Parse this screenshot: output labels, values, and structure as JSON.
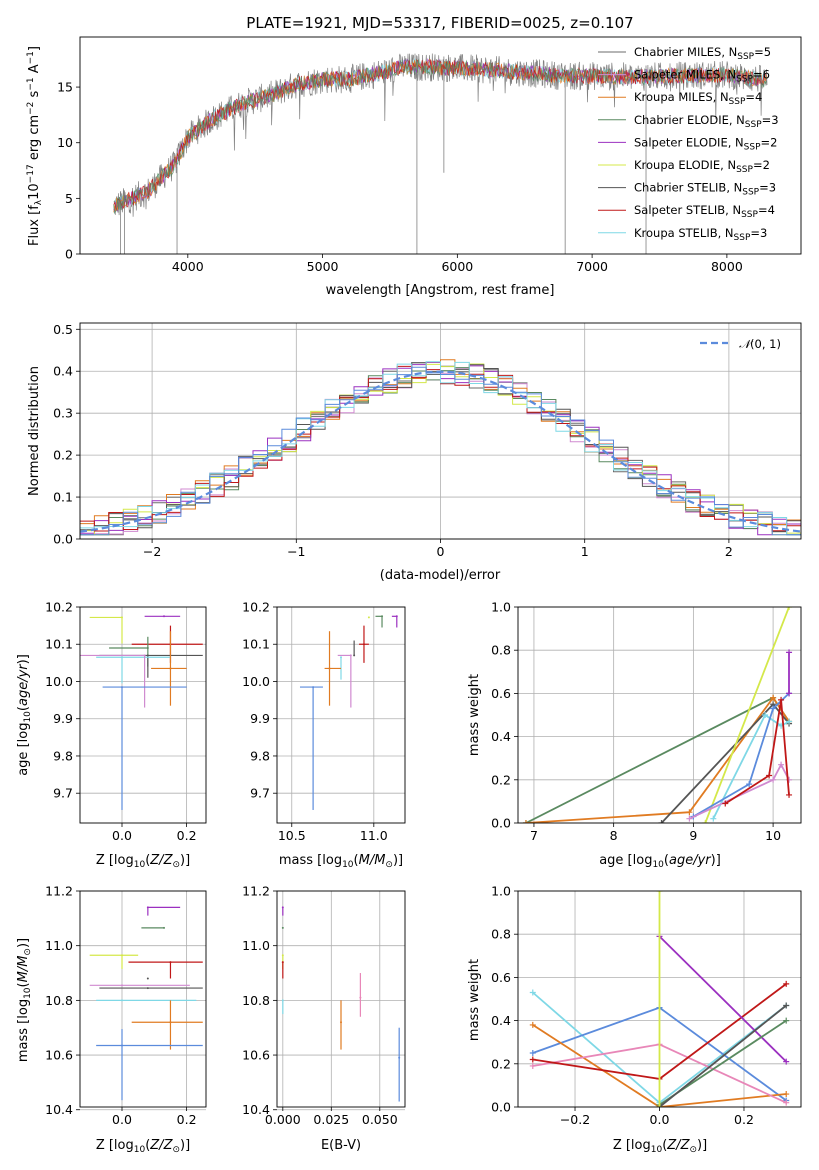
{
  "title": "PLATE=1921, MJD=53317, FIBERID=0025, z=0.107",
  "colors": {
    "Chabrier MILES": "#6b6b6b",
    "Salpeter MILES": "#d08ad0",
    "Kroupa MILES": "#e07b22",
    "Chabrier ELODIE": "#5a8a60",
    "Salpeter ELODIE": "#9b30c0",
    "Kroupa ELODIE": "#d4e84a",
    "Chabrier STELIB": "#555555",
    "Salpeter STELIB": "#c01818",
    "Kroupa STELIB": "#7fd8e6",
    "data": "#808080",
    "normal": "#5b8bdc",
    "mass_points_blue": "#5b8bdc",
    "pink": "#e887b8"
  },
  "chart_data": [
    {
      "id": "spectrum",
      "type": "line",
      "title": "PLATE=1921, MJD=53317, FIBERID=0025, z=0.107",
      "xlabel": "wavelength [Angstrom, rest frame]",
      "ylabel": "Flux [f$_\\lambda$10$^{-17}$ erg cm$^{-2}$ s$^{-1}$ A$^{-1}$]",
      "xlim": [
        3200,
        8550
      ],
      "ylim": [
        0,
        19.5
      ],
      "xticks": [
        4000,
        5000,
        6000,
        7000,
        8000
      ],
      "yticks": [
        0,
        5,
        10,
        15
      ],
      "legend_position": "right",
      "legend": [
        {
          "label": "Chabrier MILES, N",
          "sub": "SSP",
          "suffix": "=5"
        },
        {
          "label": "Salpeter MILES, N",
          "sub": "SSP",
          "suffix": "=6"
        },
        {
          "label": "Kroupa MILES, N",
          "sub": "SSP",
          "suffix": "=4"
        },
        {
          "label": "Chabrier ELODIE, N",
          "sub": "SSP",
          "suffix": "=3"
        },
        {
          "label": "Salpeter ELODIE, N",
          "sub": "SSP",
          "suffix": "=2"
        },
        {
          "label": "Kroupa ELODIE, N",
          "sub": "SSP",
          "suffix": "=2"
        },
        {
          "label": "Chabrier STELIB, N",
          "sub": "SSP",
          "suffix": "=3"
        },
        {
          "label": "Salpeter STELIB, N",
          "sub": "SSP",
          "suffix": "=4"
        },
        {
          "label": "Kroupa STELIB, N",
          "sub": "SSP",
          "suffix": "=3"
        }
      ],
      "continuum": [
        [
          3450,
          4.3
        ],
        [
          3700,
          5.6
        ],
        [
          3900,
          8.0
        ],
        [
          4000,
          10.5
        ],
        [
          4200,
          12.3
        ],
        [
          4400,
          13.5
        ],
        [
          4600,
          14.2
        ],
        [
          4800,
          15.2
        ],
        [
          5000,
          15.7
        ],
        [
          5200,
          15.7
        ],
        [
          5400,
          16.2
        ],
        [
          5600,
          16.8
        ],
        [
          5800,
          16.8
        ],
        [
          6000,
          16.7
        ],
        [
          6200,
          16.6
        ],
        [
          6500,
          16.3
        ],
        [
          6800,
          16.0
        ],
        [
          7000,
          16.0
        ],
        [
          7300,
          15.9
        ],
        [
          7600,
          16.0
        ],
        [
          8000,
          16.1
        ],
        [
          8300,
          15.6
        ]
      ],
      "dips": [
        [
          3500,
          0
        ],
        [
          3530,
          0
        ],
        [
          3920,
          0
        ],
        [
          5700,
          0
        ],
        [
          6800,
          0
        ],
        [
          7400,
          0
        ],
        [
          5900,
          7.3
        ]
      ]
    },
    {
      "id": "residuals",
      "type": "line",
      "xlabel": "(data-model)/error",
      "ylabel": "Normed distribution",
      "xlim": [
        -2.5,
        2.5
      ],
      "ylim": [
        0,
        0.515
      ],
      "xticks": [
        -2,
        -1,
        0,
        1,
        2
      ],
      "yticks": [
        0.0,
        0.1,
        0.2,
        0.3,
        0.4,
        0.5
      ],
      "legend": [
        {
          "label": "𝒩(0, 1)"
        }
      ],
      "legend_position": "top-right"
    },
    {
      "id": "age_vs_Z",
      "type": "scatter",
      "xlabel": "Z [log10(Z/Z⊙)]",
      "ylabel": "age  [log10(age/yr)]",
      "xlim": [
        -0.13,
        0.26
      ],
      "ylim": [
        9.62,
        10.2
      ],
      "xticks": [
        0.0,
        0.2
      ],
      "yticks": [
        9.7,
        9.8,
        9.9,
        10.0,
        10.1,
        10.2
      ],
      "points": [
        {
          "c": "Kroupa ELODIE",
          "x": 0.0,
          "xerr": [
            0.1,
            0.0
          ],
          "y": 10.172,
          "yerr": [
            0.07,
            0.0
          ]
        },
        {
          "c": "Salpeter ELODIE",
          "x": 0.13,
          "xerr": [
            0.06,
            0.05
          ],
          "y": 10.175,
          "yerr": [
            0.0,
            0.0
          ]
        },
        {
          "c": "Salpeter STELIB",
          "x": 0.15,
          "xerr": [
            0.12,
            0.1
          ],
          "y": 10.1,
          "yerr": [
            0.05,
            0.05
          ]
        },
        {
          "c": "Chabrier ELODIE",
          "x": 0.08,
          "xerr": [
            0.12,
            0.0
          ],
          "y": 10.09,
          "yerr": [
            0.05,
            0.03
          ]
        },
        {
          "c": "Chabrier STELIB",
          "x": 0.08,
          "xerr": [
            0.15,
            0.17
          ],
          "y": 10.07,
          "yerr": [
            0.06,
            0.0
          ]
        },
        {
          "c": "Kroupa STELIB",
          "x": 0.0,
          "xerr": [
            0.08,
            0.15
          ],
          "y": 10.065,
          "yerr": [
            0.07,
            0.0
          ]
        },
        {
          "c": "Salpeter MILES",
          "x": 0.07,
          "xerr": [
            0.2,
            0.0
          ],
          "y": 10.07,
          "yerr": [
            0.14,
            0.0
          ]
        },
        {
          "c": "Kroupa MILES",
          "x": 0.15,
          "xerr": [
            0.06,
            0.05
          ],
          "y": 10.035,
          "yerr": [
            0.1,
            0.1
          ]
        },
        {
          "c": "normal",
          "x": 0.0,
          "xerr": [
            0.06,
            0.2
          ],
          "y": 9.985,
          "yerr": [
            0.33,
            0.0
          ]
        }
      ]
    },
    {
      "id": "age_vs_mass",
      "type": "scatter",
      "xlabel": "mass [log10(M/M⊙)]",
      "ylabel": "",
      "xlim": [
        10.41,
        11.19
      ],
      "ylim": [
        9.62,
        10.2
      ],
      "xticks": [
        10.5,
        11.0
      ],
      "yticks": [
        9.7,
        9.8,
        9.9,
        10.0,
        10.1,
        10.2
      ],
      "points": [
        {
          "c": "Kroupa ELODIE",
          "x": 10.97,
          "xerr": [
            0.0,
            0.0
          ],
          "y": 10.172,
          "yerr": [
            0.0,
            0.0
          ]
        },
        {
          "c": "Chabrier ELODIE",
          "x": 11.05,
          "xerr": [
            0.04,
            0.0
          ],
          "y": 10.175,
          "yerr": [
            0.03,
            0.0
          ]
        },
        {
          "c": "Salpeter ELODIE",
          "x": 11.14,
          "xerr": [
            0.03,
            0.0
          ],
          "y": 10.175,
          "yerr": [
            0.03,
            0.0
          ]
        },
        {
          "c": "Salpeter STELIB",
          "x": 10.94,
          "xerr": [
            0.03,
            0.03
          ],
          "y": 10.1,
          "yerr": [
            0.05,
            0.05
          ]
        },
        {
          "c": "Chabrier STELIB",
          "x": 10.88,
          "xerr": [
            0.0,
            0.0
          ],
          "y": 10.07,
          "yerr": [
            0.0,
            0.04
          ]
        },
        {
          "c": "Kroupa STELIB",
          "x": 10.8,
          "xerr": [
            0.0,
            0.0
          ],
          "y": 10.065,
          "yerr": [
            0.06,
            0.0
          ]
        },
        {
          "c": "Salpeter MILES",
          "x": 10.86,
          "xerr": [
            0.08,
            0.0
          ],
          "y": 10.07,
          "yerr": [
            0.14,
            0.0
          ]
        },
        {
          "c": "Kroupa MILES",
          "x": 10.73,
          "xerr": [
            0.03,
            0.07
          ],
          "y": 10.035,
          "yerr": [
            0.1,
            0.1
          ]
        },
        {
          "c": "normal",
          "x": 10.63,
          "xerr": [
            0.08,
            0.06
          ],
          "y": 9.985,
          "yerr": [
            0.33,
            0.0
          ]
        }
      ]
    },
    {
      "id": "weight_vs_age",
      "type": "line",
      "xlabel": "age  [log10(age/yr)]",
      "ylabel": "mass weight",
      "xlim": [
        6.8,
        10.35
      ],
      "ylim": [
        0,
        1.0
      ],
      "xticks": [
        7,
        8,
        9,
        10
      ],
      "yticks": [
        0.0,
        0.2,
        0.4,
        0.6,
        0.8,
        1.0
      ],
      "series": [
        {
          "c": "Chabrier ELODIE",
          "points": [
            [
              6.9,
              0.0
            ],
            [
              10.0,
              0.58
            ],
            [
              10.2,
              0.47
            ]
          ]
        },
        {
          "c": "Kroupa MILES",
          "points": [
            [
              6.9,
              0.0
            ],
            [
              8.95,
              0.05
            ],
            [
              10.0,
              0.58
            ],
            [
              10.2,
              0.47
            ]
          ]
        },
        {
          "c": "Chabrier STELIB",
          "points": [
            [
              8.6,
              0.0
            ],
            [
              10.0,
              0.55
            ],
            [
              10.2,
              0.46
            ]
          ]
        },
        {
          "c": "Kroupa ELODIE",
          "points": [
            [
              9.15,
              0.0
            ],
            [
              10.2,
              1.0
            ]
          ]
        },
        {
          "c": "Kroupa STELIB",
          "points": [
            [
              9.25,
              0.02
            ],
            [
              9.9,
              0.5
            ],
            [
              10.1,
              0.45
            ],
            [
              10.2,
              0.47
            ]
          ]
        },
        {
          "c": "normal",
          "points": [
            [
              9.0,
              0.03
            ],
            [
              9.7,
              0.18
            ],
            [
              10.0,
              0.53
            ],
            [
              10.2,
              0.6
            ]
          ]
        },
        {
          "c": "Salpeter MILES",
          "points": [
            [
              8.95,
              0.02
            ],
            [
              10.0,
              0.2
            ],
            [
              10.1,
              0.27
            ],
            [
              10.2,
              0.2
            ]
          ]
        },
        {
          "c": "Salpeter STELIB",
          "points": [
            [
              9.4,
              0.09
            ],
            [
              9.95,
              0.22
            ],
            [
              10.1,
              0.57
            ],
            [
              10.2,
              0.13
            ]
          ]
        },
        {
          "c": "Salpeter ELODIE",
          "points": [
            [
              10.2,
              0.6
            ],
            [
              10.2,
              0.79
            ]
          ]
        }
      ]
    },
    {
      "id": "mass_vs_Z",
      "type": "scatter",
      "xlabel": "Z [log10(Z/Z⊙)]",
      "ylabel": "mass [log10(M/M⊙)]",
      "xlim": [
        -0.13,
        0.26
      ],
      "ylim": [
        10.41,
        11.2
      ],
      "xticks": [
        0.0,
        0.2
      ],
      "yticks": [
        10.4,
        10.6,
        10.8,
        11.0,
        11.2
      ],
      "points": [
        {
          "c": "Salpeter ELODIE",
          "x": 0.08,
          "xerr": [
            0.0,
            0.1
          ],
          "y": 11.14,
          "yerr": [
            0.03,
            0.0
          ]
        },
        {
          "c": "Chabrier ELODIE",
          "x": 0.13,
          "xerr": [
            0.07,
            0.0
          ],
          "y": 11.065,
          "yerr": [
            0.0,
            0.0
          ]
        },
        {
          "c": "Kroupa ELODIE",
          "x": 0.0,
          "xerr": [
            0.1,
            0.05
          ],
          "y": 10.965,
          "yerr": [
            0.05,
            0.0
          ]
        },
        {
          "c": "Salpeter STELIB",
          "x": 0.15,
          "xerr": [
            0.13,
            0.1
          ],
          "y": 10.94,
          "yerr": [
            0.06,
            0.0
          ]
        },
        {
          "c": "Chabrier STELIB",
          "x": 0.08,
          "xerr": [
            0.0,
            0.0
          ],
          "y": 10.88,
          "yerr": [
            0.0,
            0.0
          ]
        },
        {
          "c": "Salpeter MILES",
          "x": 0.0,
          "xerr": [
            0.1,
            0.21
          ],
          "y": 10.855,
          "yerr": [
            0.0,
            0.0
          ]
        },
        {
          "c": "Chabrier STELIB",
          "x": 0.08,
          "xerr": [
            0.15,
            0.17
          ],
          "y": 10.845,
          "yerr": [
            0.0,
            0.0
          ]
        },
        {
          "c": "Kroupa STELIB",
          "x": 0.0,
          "xerr": [
            0.08,
            0.23
          ],
          "y": 10.8,
          "yerr": [
            0.0,
            0.0
          ]
        },
        {
          "c": "Kroupa MILES",
          "x": 0.15,
          "xerr": [
            0.12,
            0.1
          ],
          "y": 10.72,
          "yerr": [
            0.1,
            0.08
          ]
        },
        {
          "c": "normal",
          "x": 0.0,
          "xerr": [
            0.08,
            0.25
          ],
          "y": 10.635,
          "yerr": [
            0.2,
            0.06
          ]
        }
      ]
    },
    {
      "id": "mass_vs_EBV",
      "type": "scatter",
      "xlabel": "E(B-V)",
      "ylabel": "",
      "xlim": [
        -0.003,
        0.063
      ],
      "ylim": [
        10.41,
        11.2
      ],
      "xticks": [
        0.0,
        0.025,
        0.05
      ],
      "xticklabels": [
        "0.000",
        "0.025",
        "0.050"
      ],
      "yticks": [
        10.4,
        10.6,
        10.8,
        11.0,
        11.2
      ],
      "points": [
        {
          "c": "Salpeter ELODIE",
          "x": 0.0,
          "y": 11.14,
          "yerr": [
            0.03,
            0.0
          ]
        },
        {
          "c": "Chabrier ELODIE",
          "x": 0.0,
          "y": 11.065,
          "yerr": [
            0.0,
            0.0
          ]
        },
        {
          "c": "Kroupa ELODIE",
          "x": 0.0,
          "y": 10.965,
          "yerr": [
            0.05,
            0.0
          ]
        },
        {
          "c": "Salpeter STELIB",
          "x": 0.0,
          "y": 10.94,
          "yerr": [
            0.06,
            0.0
          ]
        },
        {
          "c": "Kroupa STELIB",
          "x": 0.0,
          "y": 10.8,
          "yerr": [
            0.05,
            0.0
          ]
        },
        {
          "c": "Kroupa MILES",
          "x": 0.03,
          "y": 10.72,
          "yerr": [
            0.1,
            0.08
          ]
        },
        {
          "c": "pink",
          "x": 0.04,
          "y": 10.81,
          "yerr": [
            0.07,
            0.09
          ]
        },
        {
          "c": "normal",
          "x": 0.06,
          "y": 10.59,
          "yerr": [
            0.16,
            0.11
          ]
        }
      ]
    },
    {
      "id": "weight_vs_Z",
      "type": "line",
      "xlabel": "Z [log10(Z/Z⊙)]",
      "ylabel": "mass weight",
      "xlim": [
        -0.335,
        0.335
      ],
      "ylim": [
        0,
        1.0
      ],
      "xticks": [
        -0.2,
        0.0,
        0.2
      ],
      "yticks": [
        0.0,
        0.2,
        0.4,
        0.6,
        0.8,
        1.0
      ],
      "series": [
        {
          "c": "Kroupa STELIB",
          "points": [
            [
              -0.3,
              0.53
            ],
            [
              0.0,
              0.02
            ],
            [
              0.3,
              0.47
            ]
          ]
        },
        {
          "c": "normal",
          "points": [
            [
              -0.3,
              0.25
            ],
            [
              0.0,
              0.46
            ],
            [
              0.3,
              0.03
            ]
          ]
        },
        {
          "c": "Kroupa MILES",
          "points": [
            [
              -0.3,
              0.38
            ],
            [
              0.0,
              0.0
            ],
            [
              0.3,
              0.06
            ]
          ]
        },
        {
          "c": "pink",
          "points": [
            [
              -0.3,
              0.19
            ],
            [
              0.0,
              0.29
            ],
            [
              0.3,
              0.02
            ]
          ]
        },
        {
          "c": "Salpeter STELIB",
          "points": [
            [
              -0.3,
              0.22
            ],
            [
              0.0,
              0.13
            ],
            [
              0.3,
              0.57
            ]
          ]
        },
        {
          "c": "Salpeter ELODIE",
          "points": [
            [
              0.0,
              0.79
            ],
            [
              0.3,
              0.21
            ]
          ]
        },
        {
          "c": "Chabrier ELODIE",
          "points": [
            [
              0.0,
              0.01
            ],
            [
              0.3,
              0.4
            ]
          ]
        },
        {
          "c": "Chabrier STELIB",
          "points": [
            [
              0.0,
              0.0
            ],
            [
              0.3,
              0.47
            ]
          ]
        },
        {
          "c": "Kroupa ELODIE",
          "points": [
            [
              0.0,
              0.0
            ],
            [
              0.0,
              1.0
            ]
          ]
        }
      ]
    }
  ]
}
